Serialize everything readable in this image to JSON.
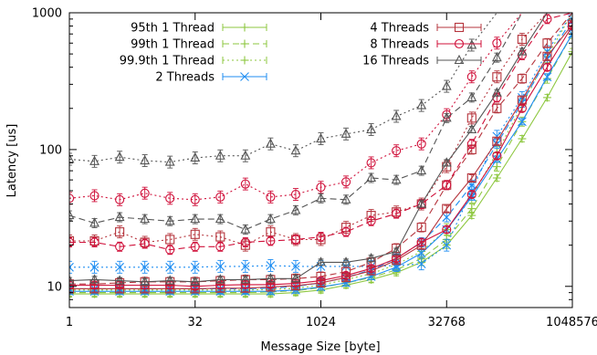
{
  "chart_data": {
    "type": "line",
    "xlabel": "Message Size [byte]",
    "ylabel": "Latency [us]",
    "xscale": "log2",
    "yscale": "log10",
    "xlim": [
      1,
      1048576
    ],
    "ylim": [
      7,
      1000
    ],
    "xticks": [
      {
        "value": 1,
        "label": "1"
      },
      {
        "value": 32,
        "label": "32"
      },
      {
        "value": 1024,
        "label": "1024"
      },
      {
        "value": 32768,
        "label": "32768"
      },
      {
        "value": 1048576,
        "label": "1048576"
      }
    ],
    "yticks": [
      {
        "value": 10,
        "label": "10"
      },
      {
        "value": 100,
        "label": "100"
      },
      {
        "value": 1000,
        "label": "1000"
      }
    ],
    "grid": false,
    "legend_position": "top",
    "x": [
      1,
      2,
      4,
      8,
      16,
      32,
      64,
      128,
      256,
      512,
      1024,
      2048,
      4096,
      8192,
      16384,
      32768,
      65536,
      131072,
      262144,
      524288,
      1048576
    ],
    "groups": [
      {
        "name": "1 Thread",
        "color": "#8dc73f",
        "marker": "plus",
        "series": [
          {
            "name": "95th 1 Thread",
            "dash": "solid",
            "values": [
              8.8,
              8.8,
              8.8,
              8.8,
              8.8,
              8.8,
              8.8,
              8.8,
              8.8,
              9.0,
              9.4,
              10.2,
              11.2,
              12.6,
              15.0,
              20,
              33,
              62,
              120,
              240,
              520
            ]
          },
          {
            "name": "99th 1 Thread",
            "dash": "dashed",
            "values": [
              9.0,
              9.0,
              9.0,
              9.0,
              9.0,
              9.0,
              9.0,
              9.0,
              9.1,
              9.3,
              9.8,
              10.6,
              11.6,
              13.2,
              16.0,
              22,
              37,
              75,
              160,
              330,
              700
            ]
          },
          {
            "name": "99.9th 1 Thread",
            "dash": "dotted",
            "values": [
              9.4,
              9.4,
              9.4,
              9.4,
              9.4,
              9.4,
              9.4,
              9.4,
              9.5,
              9.7,
              10.2,
              11.2,
              12.4,
              14.4,
              18.0,
              26,
              45,
              95,
              210,
              480,
              1000
            ]
          }
        ]
      },
      {
        "name": "2 Threads",
        "color": "#1f8ef2",
        "marker": "cross",
        "series": [
          {
            "name": "2 Threads",
            "dash": "solid",
            "values": [
              9.2,
              9.2,
              9.2,
              9.2,
              9.2,
              9.2,
              9.2,
              9.2,
              9.2,
              9.4,
              9.9,
              10.6,
              11.8,
              13.8,
              17.5,
              26,
              45,
              85,
              160,
              340,
              700
            ]
          },
          {
            "name": "",
            "dash": "dashed",
            "values": [
              9.6,
              9.6,
              9.6,
              9.6,
              9.6,
              9.6,
              9.6,
              9.6,
              9.7,
              10.0,
              10.6,
              11.6,
              13.2,
              16.0,
              21,
              32,
              55,
              110,
              220,
              460,
              900
            ]
          },
          {
            "name": "",
            "dash": "dotted",
            "values": [
              13.8,
              13.8,
              13.8,
              13.8,
              13.8,
              13.8,
              14.0,
              14.0,
              14.2,
              14.0,
              14.0,
              14.0,
              14.0,
              14.2,
              14.6,
              20,
              50,
              125,
              240,
              520,
              1000
            ]
          }
        ]
      },
      {
        "name": "4 Threads",
        "color": "#b5343c",
        "marker": "square",
        "series": [
          {
            "name": "4 Threads",
            "dash": "solid",
            "values": [
              9.6,
              9.6,
              9.6,
              9.6,
              9.6,
              9.6,
              9.7,
              9.7,
              9.9,
              10.1,
              10.6,
              11.6,
              13.0,
              15.5,
              20,
              37,
              62,
              115,
              230,
              480,
              820
            ]
          },
          {
            "name": "",
            "dash": "dashed",
            "values": [
              10.4,
              10.4,
              10.6,
              10.8,
              10.8,
              10.8,
              11.0,
              11.2,
              11.2,
              11.4,
              11.8,
              12.8,
              15.0,
              19.0,
              27,
              55,
              100,
              200,
              330,
              600,
              1000
            ]
          },
          {
            "name": "",
            "dash": "dotted",
            "values": [
              21.5,
              21.5,
              25,
              21,
              22,
              24,
              23,
              20,
              25,
              22,
              22,
              27,
              33,
              35,
              40,
              75,
              170,
              340,
              640,
              1000,
              1000
            ]
          }
        ]
      },
      {
        "name": "8 Threads",
        "color": "#d0103a",
        "marker": "circle",
        "series": [
          {
            "name": "8 Threads",
            "dash": "solid",
            "values": [
              10.2,
              10.2,
              10.2,
              10.2,
              10.2,
              10.0,
              10.2,
              10.3,
              10.3,
              10.5,
              11.0,
              12.0,
              13.5,
              16.0,
              21,
              26,
              47,
              90,
              200,
              400,
              800
            ]
          },
          {
            "name": "",
            "dash": "dashed",
            "values": [
              21,
              21,
              19.5,
              20.5,
              18.5,
              19.5,
              19.5,
              21,
              21.5,
              22,
              23,
              25,
              30,
              34,
              40,
              55,
              110,
              240,
              490,
              900,
              1000
            ]
          },
          {
            "name": "",
            "dash": "dotted",
            "values": [
              44,
              46,
              43,
              48,
              44,
              43,
              45,
              56,
              45,
              47,
              53,
              58,
              80,
              98,
              110,
              180,
              340,
              600,
              1000,
              1000,
              1000
            ]
          }
        ]
      },
      {
        "name": "16 Threads",
        "color": "#555555",
        "marker": "triangle",
        "series": [
          {
            "name": "16 Threads",
            "dash": "solid",
            "values": [
              11.0,
              11.2,
              11.0,
              10.8,
              11.0,
              10.8,
              11.2,
              11.2,
              11.4,
              11.4,
              15,
              15,
              16,
              18,
              40,
              80,
              140,
              260,
              520,
              1000,
              1000
            ]
          },
          {
            "name": "",
            "dash": "dashed",
            "values": [
              33,
              29,
              32,
              31,
              30,
              31,
              31,
              26,
              31,
              36,
              44,
              43,
              62,
              60,
              70,
              170,
              240,
              470,
              1000,
              1000,
              1000
            ]
          },
          {
            "name": "",
            "dash": "dotted",
            "values": [
              85,
              82,
              88,
              83,
              81,
              87,
              90,
              90,
              110,
              98,
              120,
              130,
              140,
              175,
              210,
              290,
              580,
              1000,
              1000,
              1000,
              1000
            ]
          }
        ]
      }
    ],
    "legend": [
      {
        "label": "95th 1 Thread",
        "color": "#8dc73f",
        "marker": "plus",
        "dash": "solid",
        "column": 0
      },
      {
        "label": "99th 1 Thread",
        "color": "#8dc73f",
        "marker": "plus",
        "dash": "dashed",
        "column": 0
      },
      {
        "label": "99.9th 1 Thread",
        "color": "#8dc73f",
        "marker": "plus",
        "dash": "dotted",
        "column": 0
      },
      {
        "label": "2 Threads",
        "color": "#1f8ef2",
        "marker": "cross",
        "dash": "solid",
        "column": 0
      },
      {
        "label": "4 Threads",
        "color": "#b5343c",
        "marker": "square",
        "dash": "solid",
        "column": 1
      },
      {
        "label": "8 Threads",
        "color": "#d0103a",
        "marker": "circle",
        "dash": "solid",
        "column": 1
      },
      {
        "label": "16 Threads",
        "color": "#555555",
        "marker": "triangle",
        "dash": "solid",
        "column": 1
      }
    ]
  }
}
